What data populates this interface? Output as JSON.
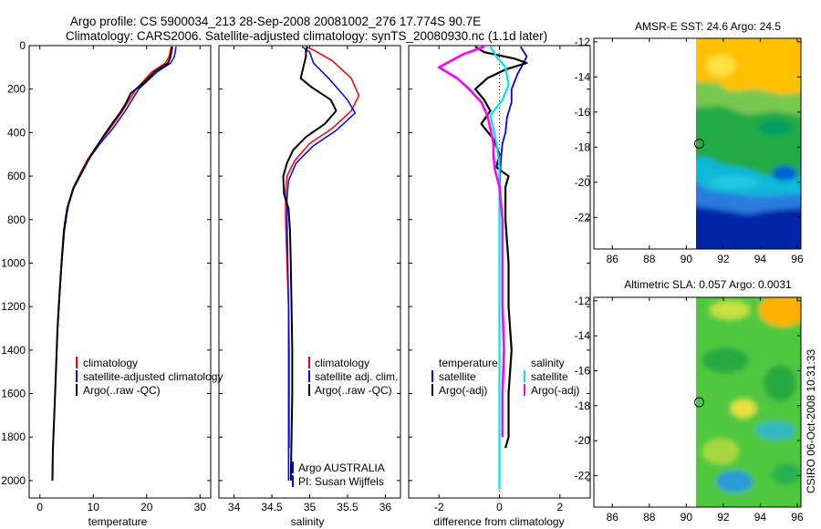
{
  "title": {
    "line1": "Argo profile: CS 5900034_213 28-Sep-2008 20081002_276 17.774S 90.7E",
    "line2": "Climatology: CARS2006. Satellite-adjusted climatology: synTS_20080930.nc (1.1d later)"
  },
  "side_text": "CSIRO 06-Oct-2008 10:31:33",
  "colors": {
    "climatology": "#ff0000",
    "satellite": "#0000ff",
    "argo": "#000000",
    "sal_satellite": "#00e5e5",
    "sal_argo": "#ff00ff"
  },
  "chart_data": [
    {
      "type": "line",
      "name": "temperature-panel",
      "xlabel": "temperature",
      "xlim": [
        -2,
        32
      ],
      "xticks": [
        "0",
        "10",
        "20",
        "30"
      ],
      "ylim": [
        2080,
        0
      ],
      "yticks": [
        "0",
        "200",
        "400",
        "600",
        "800",
        "1000",
        "1200",
        "1400",
        "1600",
        "1800",
        "2000"
      ],
      "legend": [
        "climatology",
        "satellite-adjusted climatology",
        "Argo(..raw -QC)"
      ],
      "series": [
        {
          "name": "climatology",
          "points": [
            [
              24.6,
              5
            ],
            [
              24.2,
              50
            ],
            [
              23.5,
              80
            ],
            [
              21,
              120
            ],
            [
              18,
              200
            ],
            [
              15.5,
              300
            ],
            [
              13.2,
              380
            ],
            [
              11,
              450
            ],
            [
              9,
              520
            ],
            [
              7.5,
              590
            ],
            [
              6.3,
              650
            ],
            [
              5.2,
              740
            ],
            [
              4.6,
              850
            ],
            [
              4.1,
              1000
            ],
            [
              3.7,
              1150
            ],
            [
              3.35,
              1300
            ],
            [
              3.0,
              1500
            ],
            [
              2.7,
              1700
            ],
            [
              2.5,
              1850
            ]
          ]
        },
        {
          "name": "satellite",
          "points": [
            [
              25.5,
              5
            ],
            [
              25.2,
              50
            ],
            [
              24.5,
              80
            ],
            [
              22,
              120
            ],
            [
              18.5,
              200
            ],
            [
              16,
              300
            ],
            [
              13.7,
              380
            ],
            [
              11.3,
              450
            ],
            [
              9.2,
              520
            ],
            [
              7.6,
              590
            ],
            [
              6.4,
              650
            ],
            [
              5.3,
              740
            ],
            [
              4.6,
              850
            ],
            [
              4.1,
              1000
            ],
            [
              3.7,
              1150
            ],
            [
              3.35,
              1300
            ],
            [
              3.0,
              1500
            ],
            [
              2.7,
              1700
            ],
            [
              2.45,
              1850
            ],
            [
              2.3,
              2000
            ]
          ]
        },
        {
          "name": "argo",
          "points": [
            [
              24.8,
              5
            ],
            [
              24.5,
              50
            ],
            [
              24,
              80
            ],
            [
              21.5,
              120
            ],
            [
              19.5,
              170
            ],
            [
              17,
              220
            ],
            [
              16,
              270
            ],
            [
              15,
              310
            ],
            [
              13.5,
              360
            ],
            [
              11.8,
              420
            ],
            [
              10.2,
              480
            ],
            [
              9,
              530
            ],
            [
              7.5,
              600
            ],
            [
              6.2,
              660
            ],
            [
              5.1,
              750
            ],
            [
              4.5,
              850
            ],
            [
              4.05,
              1000
            ],
            [
              3.65,
              1150
            ],
            [
              3.3,
              1300
            ],
            [
              3.0,
              1500
            ],
            [
              2.7,
              1700
            ],
            [
              2.45,
              1850
            ],
            [
              2.35,
              2000
            ]
          ]
        }
      ]
    },
    {
      "type": "line",
      "name": "salinity-panel",
      "xlabel": "salinity",
      "xlim": [
        33.8,
        36.2
      ],
      "xticks": [
        "34",
        "34.5",
        "35",
        "35.5",
        "36"
      ],
      "ylim": [
        2080,
        0
      ],
      "legend": [
        "climatology",
        "satellite adj. clim.",
        "Argo(..raw -QC)"
      ],
      "annotation": [
        "Argo AUSTRALIA",
        "PI: Susan Wijffels"
      ],
      "series": [
        {
          "name": "climatology",
          "points": [
            [
              34.95,
              5
            ],
            [
              35.05,
              20
            ],
            [
              35.3,
              70
            ],
            [
              35.55,
              150
            ],
            [
              35.65,
              230
            ],
            [
              35.55,
              300
            ],
            [
              35.3,
              380
            ],
            [
              35.0,
              450
            ],
            [
              34.8,
              530
            ],
            [
              34.7,
              600
            ],
            [
              34.68,
              680
            ],
            [
              34.68,
              800
            ],
            [
              34.7,
              1000
            ],
            [
              34.72,
              1200
            ],
            [
              34.73,
              1400
            ],
            [
              34.73,
              1600
            ],
            [
              34.73,
              1850
            ]
          ]
        },
        {
          "name": "satellite",
          "points": [
            [
              34.9,
              5
            ],
            [
              35.0,
              30
            ],
            [
              35.05,
              80
            ],
            [
              35.25,
              150
            ],
            [
              35.5,
              250
            ],
            [
              35.6,
              310
            ],
            [
              35.35,
              390
            ],
            [
              35.05,
              460
            ],
            [
              34.82,
              540
            ],
            [
              34.72,
              620
            ],
            [
              34.7,
              700
            ],
            [
              34.7,
              800
            ],
            [
              34.71,
              1000
            ],
            [
              34.72,
              1200
            ],
            [
              34.72,
              1400
            ],
            [
              34.72,
              1600
            ],
            [
              34.72,
              1800
            ],
            [
              34.72,
              2000
            ]
          ]
        },
        {
          "name": "argo",
          "points": [
            [
              34.97,
              5
            ],
            [
              34.95,
              20
            ],
            [
              34.95,
              50
            ],
            [
              34.88,
              150
            ],
            [
              35.02,
              190
            ],
            [
              35.28,
              250
            ],
            [
              35.35,
              300
            ],
            [
              35.2,
              360
            ],
            [
              34.95,
              420
            ],
            [
              34.78,
              480
            ],
            [
              34.7,
              540
            ],
            [
              34.65,
              600
            ],
            [
              34.66,
              680
            ],
            [
              34.72,
              750
            ],
            [
              34.74,
              850
            ],
            [
              34.75,
              1000
            ],
            [
              34.76,
              1200
            ],
            [
              34.77,
              1400
            ],
            [
              34.77,
              1600
            ],
            [
              34.76,
              1800
            ],
            [
              34.75,
              2000
            ]
          ]
        }
      ]
    },
    {
      "type": "line",
      "name": "difference-panel",
      "xlabel": "difference from climatology",
      "xlim": [
        -3,
        3
      ],
      "xticks": [
        "-2",
        "0",
        "2"
      ],
      "ylim": [
        2080,
        0
      ],
      "legend_headers": [
        "temperature",
        "salinity"
      ],
      "legend": [
        "satellite",
        "Argo(-adj)",
        "satellite",
        "Argo(-adj)"
      ],
      "series": [
        {
          "name": "temperature satellite",
          "points": [
            [
              0.7,
              5
            ],
            [
              0.9,
              50
            ],
            [
              0.8,
              80
            ],
            [
              0.6,
              130
            ],
            [
              0.4,
              200
            ],
            [
              0.4,
              260
            ],
            [
              0.25,
              330
            ],
            [
              0.2,
              400
            ],
            [
              0.1,
              450
            ],
            [
              0.05,
              520
            ],
            [
              0.02,
              600
            ],
            [
              0.0,
              700
            ],
            [
              0.0,
              1000
            ],
            [
              0.0,
              1400
            ],
            [
              0.0,
              1800
            ],
            [
              0.0,
              2000
            ]
          ]
        },
        {
          "name": "temperature argo",
          "points": [
            [
              -0.8,
              5
            ],
            [
              -0.5,
              30
            ],
            [
              0.5,
              60
            ],
            [
              0.9,
              80
            ],
            [
              0.2,
              110
            ],
            [
              -0.4,
              150
            ],
            [
              -0.8,
              200
            ],
            [
              -0.5,
              250
            ],
            [
              -0.3,
              300
            ],
            [
              -0.6,
              360
            ],
            [
              -0.2,
              430
            ],
            [
              0.0,
              500
            ],
            [
              -0.1,
              560
            ],
            [
              0.3,
              600
            ],
            [
              0.2,
              650
            ],
            [
              0.2,
              800
            ],
            [
              0.3,
              1000
            ],
            [
              0.3,
              1200
            ],
            [
              0.4,
              1400
            ],
            [
              0.3,
              1600
            ],
            [
              0.3,
              1800
            ],
            [
              0.2,
              1850
            ]
          ]
        },
        {
          "name": "salinity satellite",
          "points": [
            [
              -0.3,
              5
            ],
            [
              -0.1,
              50
            ],
            [
              0.2,
              100
            ],
            [
              0.3,
              180
            ],
            [
              0.1,
              250
            ],
            [
              -0.3,
              320
            ],
            [
              -0.2,
              380
            ],
            [
              -0.1,
              450
            ],
            [
              0.0,
              550
            ],
            [
              0.0,
              700
            ],
            [
              0.0,
              1000
            ],
            [
              0.0,
              1400
            ],
            [
              0.0,
              1800
            ],
            [
              0.0,
              2040
            ]
          ]
        },
        {
          "name": "salinity argo",
          "points": [
            [
              -0.5,
              5
            ],
            [
              -1.2,
              40
            ],
            [
              -2.0,
              100
            ],
            [
              -1.4,
              150
            ],
            [
              -1.0,
              200
            ],
            [
              -0.6,
              260
            ],
            [
              -0.4,
              320
            ],
            [
              -0.3,
              380
            ],
            [
              -0.2,
              450
            ],
            [
              -0.2,
              500
            ],
            [
              -0.15,
              570
            ],
            [
              0.0,
              650
            ],
            [
              0.1,
              800
            ],
            [
              0.1,
              1000
            ],
            [
              0.1,
              1200
            ],
            [
              0.15,
              1400
            ],
            [
              0.1,
              1600
            ],
            [
              0.1,
              1800
            ]
          ]
        }
      ]
    },
    {
      "type": "heatmap",
      "name": "sst-map",
      "title": "AMSR-E SST: 24.6 Argo: 24.5",
      "xlim": [
        85,
        96.2
      ],
      "ylim": [
        -23.8,
        -11.8
      ],
      "xticks": [
        "86",
        "88",
        "90",
        "92",
        "94",
        "96"
      ],
      "yticks": [
        "-12",
        "-14",
        "-16",
        "-18",
        "-20",
        "-22"
      ],
      "data_x_start": 90,
      "marker": [
        90.7,
        -17.8
      ]
    },
    {
      "type": "heatmap",
      "name": "sla-map",
      "title": "Altimetric SLA: 0.057 Argo: 0.0031",
      "xlim": [
        85,
        96.2
      ],
      "ylim": [
        -23.8,
        -11.8
      ],
      "xticks": [
        "86",
        "88",
        "90",
        "92",
        "94",
        "96"
      ],
      "yticks": [
        "-12",
        "-14",
        "-16",
        "-18",
        "-20",
        "-22"
      ],
      "data_x_start": 90,
      "marker": [
        90.7,
        -17.8
      ]
    }
  ]
}
